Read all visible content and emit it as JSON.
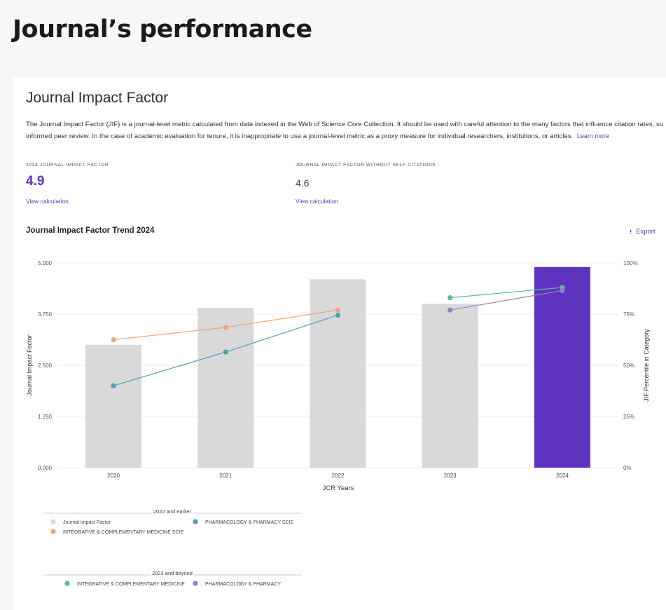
{
  "page": {
    "title": "Journal’s performance"
  },
  "jif": {
    "section_title": "Journal Impact Factor",
    "description_line1": "The Journal Impact Factor (JIF) is a journal-level metric calculated from data indexed in the Web of Science Core Collection. It should be used with careful attention to the many factors that influence citation rates, su",
    "description_line2": "informed peer review. In the case of academic evaluation for tenure, it is inappropriate to use a journal-level metric as a proxy measure for individual researchers, institutions, or articles.",
    "learn_more": "Learn more",
    "metrics": [
      {
        "label": "2024 JOURNAL IMPACT FACTOR",
        "value": "4.9",
        "link": "View calculation"
      },
      {
        "label": "JOURNAL IMPACT FACTOR WITHOUT SELF CITATIONS",
        "value": "4.6",
        "link": "View calculation"
      }
    ],
    "trend_title": "Journal Impact Factor Trend 2024",
    "export_label": "Export",
    "export_icon": "download-icon"
  },
  "colors": {
    "accent": "#5e33bf",
    "bar_gray": "#d9d9d9",
    "integrative_2022": "#f0a47a",
    "pharmacology_2022": "#4aa3b5",
    "integrative_2023": "#4fc18f",
    "pharmacology_2023": "#8b84c0"
  },
  "chart_data": {
    "type": "bar",
    "xlabel": "JCR Years",
    "ylabel": "Journal Impact Factor",
    "y2label": "JIF Percentile in Category",
    "categories": [
      "2020",
      "2021",
      "2022",
      "2023",
      "2024"
    ],
    "ylim": [
      0,
      5
    ],
    "y_ticks": [
      "0.000",
      "1.250",
      "2.500",
      "3.750",
      "5.000"
    ],
    "y2lim": [
      0,
      100
    ],
    "y2_ticks": [
      "0%",
      "25%",
      "50%",
      "75%",
      "100%"
    ],
    "grid": true,
    "bars": {
      "name": "Journal Impact Factor",
      "values": [
        3.0,
        3.9,
        4.6,
        4.0,
        4.9
      ],
      "highlight_index": 4
    },
    "series": [
      {
        "name": "INTEGRATIVE & COMPLEMENTARY MEDICINE  SCIE",
        "group": "2022 and earlier",
        "x": [
          "2020",
          "2021",
          "2022"
        ],
        "values": [
          62.5,
          68.5,
          77.0
        ],
        "color_key": "integrative_2022"
      },
      {
        "name": "PHARMACOLOGY & PHARMACY  SCIE",
        "group": "2022 and earlier",
        "x": [
          "2020",
          "2021",
          "2022"
        ],
        "values": [
          40.0,
          56.5,
          74.5
        ],
        "color_key": "pharmacology_2022"
      },
      {
        "name": "INTEGRATIVE & COMPLEMENTARY MEDICINE",
        "group": "2023 and beyond",
        "x": [
          "2023",
          "2024"
        ],
        "values": [
          83.0,
          88.0
        ],
        "color_key": "integrative_2023"
      },
      {
        "name": "PHARMACOLOGY & PHARMACY",
        "group": "2023 and beyond",
        "x": [
          "2023",
          "2024"
        ],
        "values": [
          77.0,
          86.5
        ],
        "color_key": "pharmacology_2023"
      }
    ],
    "legend": {
      "placement": "bottom-left",
      "groups": [
        {
          "title": "2022 and earlier",
          "items": [
            "Journal Impact Factor",
            "PHARMACOLOGY & PHARMACY   SCIE",
            "INTEGRATIVE & COMPLEMENTARY MEDICINE   SCIE"
          ]
        },
        {
          "title": "2023 and beyond",
          "items": [
            "INTEGRATIVE & COMPLEMENTARY MEDICINE",
            "PHARMACOLOGY & PHARMACY"
          ]
        }
      ]
    }
  }
}
